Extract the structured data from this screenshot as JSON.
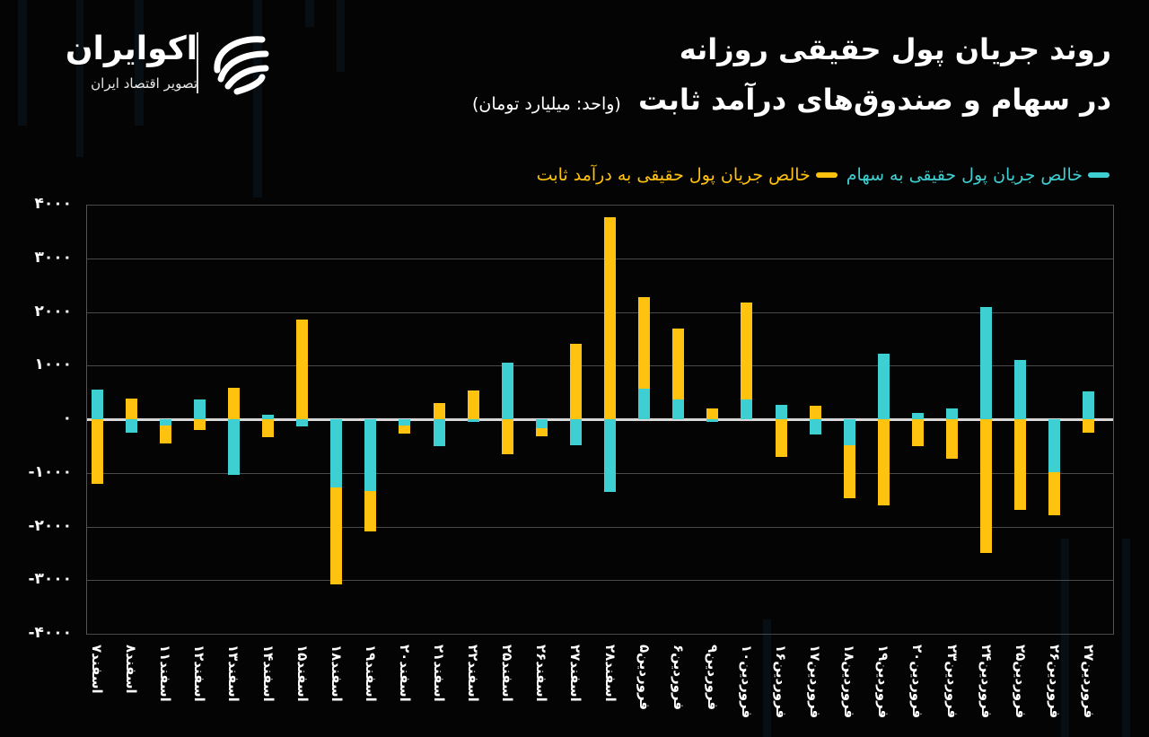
{
  "brand": {
    "name": "اکوایران",
    "tagline": "تصویر اقتصاد ایران"
  },
  "title": {
    "line1": "روند جریان پول حقیقی روزانه",
    "line2": "در سهام و صندوق‌های درآمد ثابت",
    "unit": "(واحد: میلیارد تومان)"
  },
  "legend": {
    "stocks": "خالص جریان پول حقیقی به سهام",
    "fixed_income": "خالص جریان پول حقیقی به درآمد ثابت"
  },
  "colors": {
    "stocks": "#3ecfd3",
    "fixed_income": "#ffc20e",
    "background": "#040404",
    "grid": "#4a4a4a",
    "zero_line": "#d8d8d8"
  },
  "y_ticks": [
    "۴۰۰۰",
    "۳۰۰۰",
    "۲۰۰۰",
    "۱۰۰۰",
    "۰",
    "-۱۰۰۰",
    "-۲۰۰۰",
    "-۳۰۰۰",
    "-۴۰۰۰"
  ],
  "chart_data": {
    "type": "bar",
    "title": "روند جریان پول حقیقی روزانه در سهام و صندوق‌های درآمد ثابت",
    "subtitle": "(واحد: میلیارد تومان)",
    "xlabel": "",
    "ylabel": "میلیارد تومان",
    "ylim": [
      -4000,
      4000
    ],
    "y_tick_values": [
      4000,
      3000,
      2000,
      1000,
      0,
      -1000,
      -2000,
      -3000,
      -4000
    ],
    "grid": true,
    "legend_position": "top-right",
    "stacking": "overlay-stacked per sign",
    "categories": [
      "اسفند۷",
      "اسفند۸",
      "اسفند۱۱",
      "اسفند۱۲",
      "اسفند۱۳",
      "اسفند۱۴",
      "اسفند۱۵",
      "اسفند۱۸",
      "اسفند۱۹",
      "اسفند۲۰",
      "اسفند۲۱",
      "اسفند۲۲",
      "اسفند۲۵",
      "اسفند۲۶",
      "اسفند۲۷",
      "اسفند۲۸",
      "فروردین۵",
      "فروردین۶",
      "فروردین۹",
      "فروردین۱۰",
      "فروردین۱۶",
      "فروردین۱۷",
      "فروردین۱۸",
      "فروردین۱۹",
      "فروردین۲۰",
      "فروردین۲۳",
      "فروردین۲۴",
      "فروردین۲۵",
      "فروردین۲۶",
      "فروردین۲۷"
    ],
    "series": [
      {
        "name": "خالص جریان پول حقیقی به سهام",
        "color": "#3ecfd3",
        "values": [
          550,
          -250,
          -120,
          370,
          -1030,
          90,
          -130,
          -1280,
          -1340,
          -110,
          -500,
          -50,
          1050,
          -170,
          -480,
          -1360,
          570,
          360,
          -50,
          370,
          260,
          -290,
          -490,
          1230,
          110,
          200,
          2100,
          1100,
          -990,
          520
        ]
      },
      {
        "name": "خالص جریان پول حقیقی به درآمد ثابت",
        "color": "#ffc20e",
        "values": [
          -1200,
          380,
          -330,
          -200,
          580,
          -330,
          1850,
          -1800,
          -760,
          -150,
          300,
          530,
          -650,
          -140,
          1400,
          3770,
          1700,
          1330,
          200,
          1800,
          -700,
          250,
          -990,
          -1600,
          -510,
          -730,
          -2500,
          -1690,
          -800,
          -250
        ]
      }
    ]
  }
}
